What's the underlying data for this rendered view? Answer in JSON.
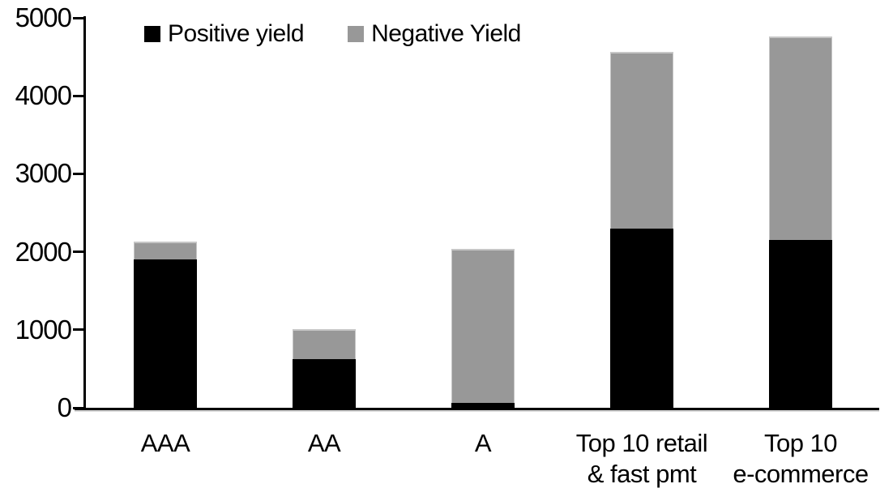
{
  "chart_data": {
    "type": "bar",
    "stacked": true,
    "title": "",
    "xlabel": "",
    "ylabel": "",
    "grid": false,
    "legend_position": "top-left",
    "background_color": "#ffffff",
    "axis_color": "#000000",
    "categories": [
      "AAA",
      "AA",
      "A",
      "Top 10 retail\n& fast pmt",
      "Top 10\ne-commerce"
    ],
    "series": [
      {
        "name": "Positive yield",
        "color": "#000000",
        "values": [
          1900,
          625,
          60,
          2300,
          2150
        ]
      },
      {
        "name": "Negative Yield",
        "color": "#989898",
        "values": [
          230,
          385,
          1975,
          2260,
          2610
        ]
      }
    ],
    "totals": [
      2130,
      1010,
      2035,
      4560,
      4760
    ],
    "ylim": [
      0,
      5000
    ],
    "yticks": [
      0,
      1000,
      2000,
      3000,
      4000,
      5000
    ]
  }
}
